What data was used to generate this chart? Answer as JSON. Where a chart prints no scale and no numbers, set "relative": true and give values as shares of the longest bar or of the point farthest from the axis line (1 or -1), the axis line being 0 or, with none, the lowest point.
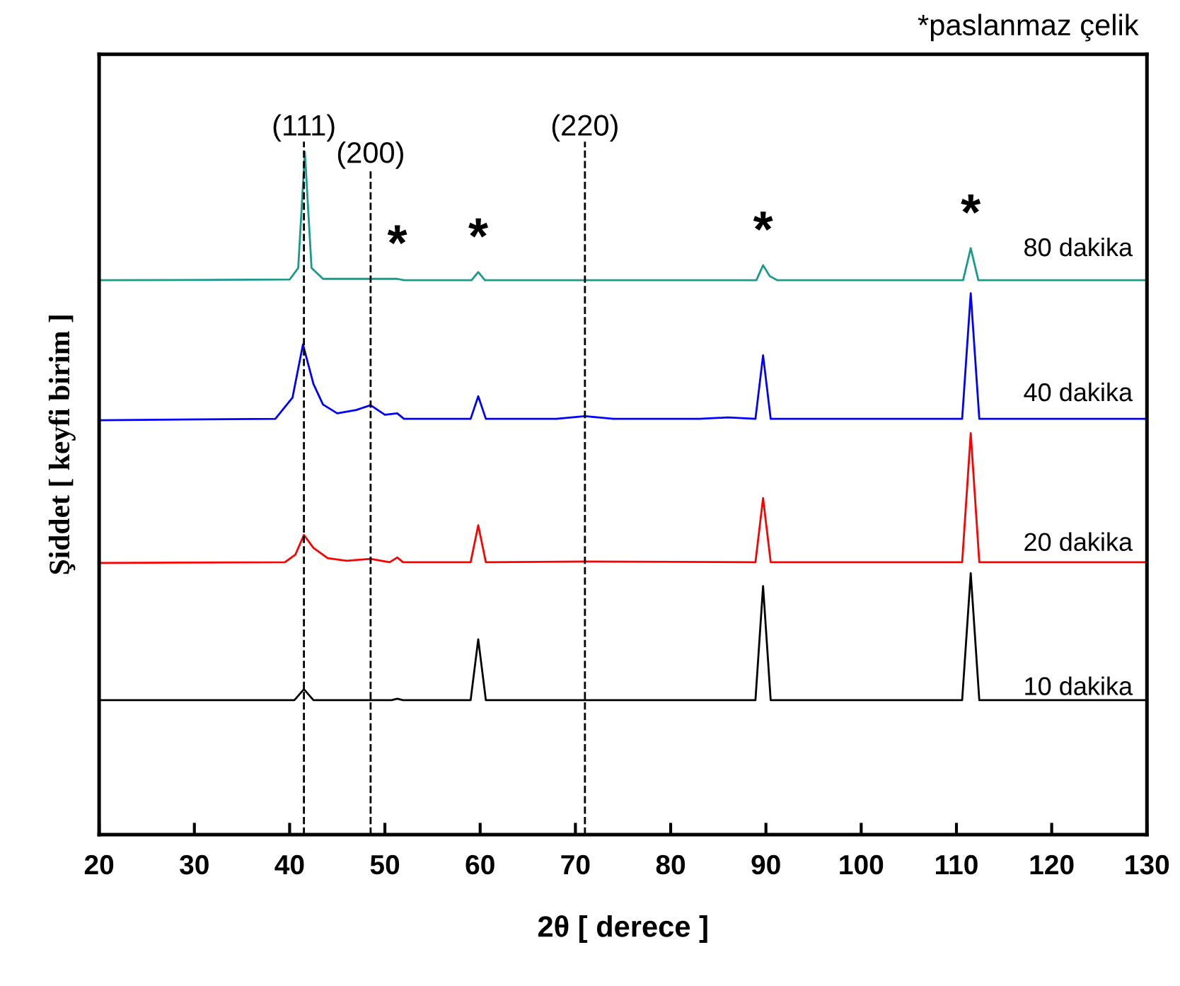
{
  "chart_data": {
    "type": "line",
    "relative": true,
    "xlabel": "2θ [ derece ]",
    "ylabel": "Şiddet [ keyfi birim ]",
    "xlim": [
      20,
      130
    ],
    "xticks": [
      20,
      30,
      40,
      50,
      60,
      70,
      80,
      90,
      100,
      110,
      120,
      130
    ],
    "grid": false,
    "legend": false,
    "marker": "none",
    "line_style": "solid",
    "series": [
      {
        "name": "10 dakika",
        "color": "#000000",
        "x": [
          20,
          40.5,
          41.5,
          42.5,
          50.7,
          51.3,
          51.9,
          59.0,
          59.8,
          60.6,
          88.9,
          89.7,
          90.5,
          110.6,
          111.5,
          112.4,
          130
        ],
        "values": [
          0.197,
          0.197,
          0.213,
          0.197,
          0.197,
          0.199,
          0.197,
          0.197,
          0.286,
          0.197,
          0.197,
          0.364,
          0.197,
          0.197,
          0.383,
          0.197,
          0.197
        ]
      },
      {
        "name": "20 dakika",
        "color": "#ff0000",
        "x": [
          20,
          39.5,
          40.6,
          41.5,
          42.5,
          44,
          46,
          48.5,
          50.5,
          51.3,
          51.9,
          59.0,
          59.8,
          60.6,
          71,
          88.9,
          89.7,
          90.5,
          110.6,
          111.5,
          112.4,
          130
        ],
        "values": [
          0.398,
          0.399,
          0.41,
          0.439,
          0.42,
          0.405,
          0.401,
          0.404,
          0.399,
          0.406,
          0.399,
          0.399,
          0.453,
          0.399,
          0.4,
          0.399,
          0.493,
          0.399,
          0.399,
          0.588,
          0.399,
          0.399
        ]
      },
      {
        "name": "40 dakika",
        "color": "#0000ff",
        "x": [
          20,
          38.5,
          40.3,
          41.4,
          42.5,
          43.5,
          45,
          47,
          48.5,
          50,
          51.3,
          52,
          59.0,
          59.8,
          60.6,
          68,
          71,
          74,
          83,
          86,
          88.9,
          89.7,
          90.5,
          110.6,
          111.5,
          112.4,
          130
        ],
        "values": [
          0.607,
          0.609,
          0.64,
          0.718,
          0.66,
          0.63,
          0.617,
          0.622,
          0.629,
          0.615,
          0.617,
          0.609,
          0.609,
          0.642,
          0.609,
          0.609,
          0.613,
          0.609,
          0.609,
          0.611,
          0.609,
          0.702,
          0.609,
          0.609,
          0.793,
          0.609,
          0.609
        ]
      },
      {
        "name": "80 dakika",
        "color": "#1a9a8a",
        "x": [
          20,
          40,
          40.9,
          41.6,
          42.3,
          43.5,
          51.3,
          52,
          59.1,
          59.8,
          60.5,
          89.0,
          89.7,
          90.4,
          91.2,
          110.7,
          111.5,
          112.3,
          130
        ],
        "values": [
          0.812,
          0.813,
          0.83,
          1.0,
          0.83,
          0.814,
          0.814,
          0.812,
          0.812,
          0.824,
          0.812,
          0.812,
          0.834,
          0.818,
          0.812,
          0.812,
          0.859,
          0.812,
          0.812
        ]
      }
    ],
    "ref_lines": [
      {
        "axis": "x",
        "value": 41.5,
        "color": "#000000",
        "line_style": "dashed"
      },
      {
        "axis": "x",
        "value": 48.5,
        "color": "#000000",
        "line_style": "dashed"
      },
      {
        "axis": "x",
        "value": 71,
        "color": "#000000",
        "line_style": "dashed"
      }
    ],
    "annotations": [
      "(111)",
      "(200)",
      "(220)",
      {
        "text": "*",
        "x": 51.3,
        "y": 0.814
      },
      {
        "text": "*",
        "x": 59.8,
        "y": 0.824
      },
      {
        "text": "*",
        "x": 89.7,
        "y": 0.834
      },
      {
        "text": "*",
        "x": 111.5,
        "y": 0.859
      },
      "*paslanmaz çelik"
    ]
  }
}
